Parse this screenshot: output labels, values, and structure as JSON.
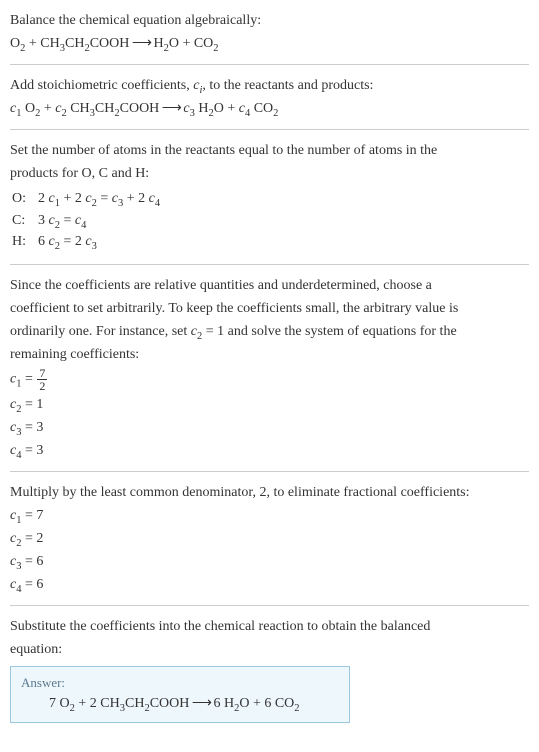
{
  "intro": {
    "line1_pre": "Balance the chemical equation algebraically:",
    "eq_left_o2": "O",
    "eq_left_o2_sub": "2",
    "plus": " + ",
    "eq_left_ch3": "CH",
    "eq_left_ch3_sub": "3",
    "eq_left_ch2": "CH",
    "eq_left_ch2_sub": "2",
    "eq_left_cooh": "COOH",
    "arrow": " ⟶ ",
    "eq_right_h2o_h": "H",
    "eq_right_h2o_hsub": "2",
    "eq_right_h2o_o": "O",
    "eq_right_co2_c": "CO",
    "eq_right_co2_sub": "2"
  },
  "stoich": {
    "line1_pre": "Add stoichiometric coefficients, ",
    "ci_c": "c",
    "ci_i": "i",
    "line1_post": ", to the reactants and products:",
    "c1": "c",
    "c1s": "1",
    "c2": "c",
    "c2s": "2",
    "c3": "c",
    "c3s": "3",
    "c4": "c",
    "c4s": "4"
  },
  "atoms": {
    "intro1": "Set the number of atoms in the reactants equal to the number of atoms in the",
    "intro2": "products for O, C and H:",
    "O_label": "O:",
    "O_eq_pre": "2 ",
    "O_eq_mid1": " + 2 ",
    "O_eq_mid2": " = ",
    "O_eq_mid3": " + 2 ",
    "C_label": "C:",
    "C_eq_pre": "3 ",
    "C_eq_mid": " = ",
    "H_label": "H:",
    "H_eq_pre": "6 ",
    "H_eq_mid": " = 2 "
  },
  "under": {
    "l1": "Since the coefficients are relative quantities and underdetermined, choose a",
    "l2": "coefficient to set arbitrarily. To keep the coefficients small, the arbitrary value is",
    "l3_pre": "ordinarily one. For instance, set ",
    "l3_c2": "c",
    "l3_c2s": "2",
    "l3_mid": " = 1 and solve the system of equations for the",
    "l4": "remaining coefficients:",
    "r1_lhs": "c",
    "r1_lhs_s": "1",
    "r1_eq": " = ",
    "r1_num": "7",
    "r1_den": "2",
    "r2": "c",
    "r2_s": "2",
    "r2_val": " = 1",
    "r3": "c",
    "r3_s": "3",
    "r3_val": " = 3",
    "r4": "c",
    "r4_s": "4",
    "r4_val": " = 3"
  },
  "mult": {
    "l1": "Multiply by the least common denominator, 2, to eliminate fractional coefficients:",
    "r1": "c",
    "r1_s": "1",
    "r1_val": " = 7",
    "r2": "c",
    "r2_s": "2",
    "r2_val": " = 2",
    "r3": "c",
    "r3_s": "3",
    "r3_val": " = 6",
    "r4": "c",
    "r4_s": "4",
    "r4_val": " = 6"
  },
  "subst": {
    "l1": "Substitute the coefficients into the chemical reaction to obtain the balanced",
    "l2": "equation:"
  },
  "answer": {
    "label": "Answer:",
    "seven": "7 ",
    "o2": "O",
    "o2s": "2",
    "plus1": " + 2 ",
    "ch3": "CH",
    "ch3s": "3",
    "ch2": "CH",
    "ch2s": "2",
    "cooh": "COOH",
    "arrow": " ⟶ ",
    "six1": "6 ",
    "h2": "H",
    "h2s": "2",
    "h2o_o": "O",
    "plus2": " + 6 ",
    "co2": "CO",
    "co2s": "2"
  }
}
